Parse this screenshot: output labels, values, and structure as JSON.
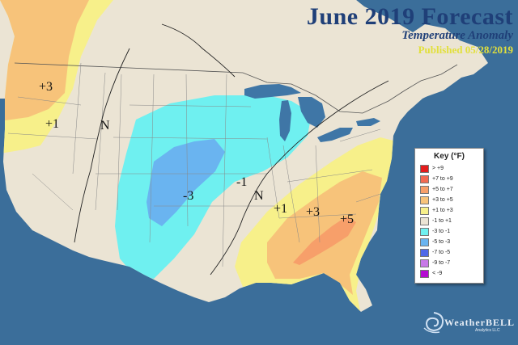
{
  "title": "June 2019 Forecast",
  "subtitle": "Temperature Anomaly",
  "published": "Published 05/28/2019",
  "legend": {
    "title": "Key (°F)",
    "items": [
      {
        "label": "> +9",
        "color": "#e31c1c"
      },
      {
        "label": "+7 to +9",
        "color": "#f26a52"
      },
      {
        "label": "+5 to +7",
        "color": "#f79f6a"
      },
      {
        "label": "+3 to +5",
        "color": "#f7c37a"
      },
      {
        "label": "+1 to +3",
        "color": "#f7f08a"
      },
      {
        "label": "-1 to +1",
        "color": "#ebe4d4"
      },
      {
        "label": "-3 to -1",
        "color": "#6ff0f0"
      },
      {
        "label": "-5 to -3",
        "color": "#6ab4f0"
      },
      {
        "label": "-7 to -5",
        "color": "#4f69e8"
      },
      {
        "label": "-9 to -7",
        "color": "#c878e8"
      },
      {
        "label": "< -9",
        "color": "#b40ad2"
      }
    ]
  },
  "map_labels": {
    "wa": "+3",
    "or": "+1",
    "n_west": "N",
    "co": "-3",
    "ia": "-1",
    "n_east": "N",
    "tn": "+1",
    "nc_w": "+3",
    "sc": "+5"
  },
  "brand": {
    "name": "WeatherBELL",
    "tagline": "Analytics LLC"
  },
  "colors": {
    "ocean": "#3b6e9a",
    "land": "#ebe4d4",
    "lake": "#3f76a6"
  }
}
